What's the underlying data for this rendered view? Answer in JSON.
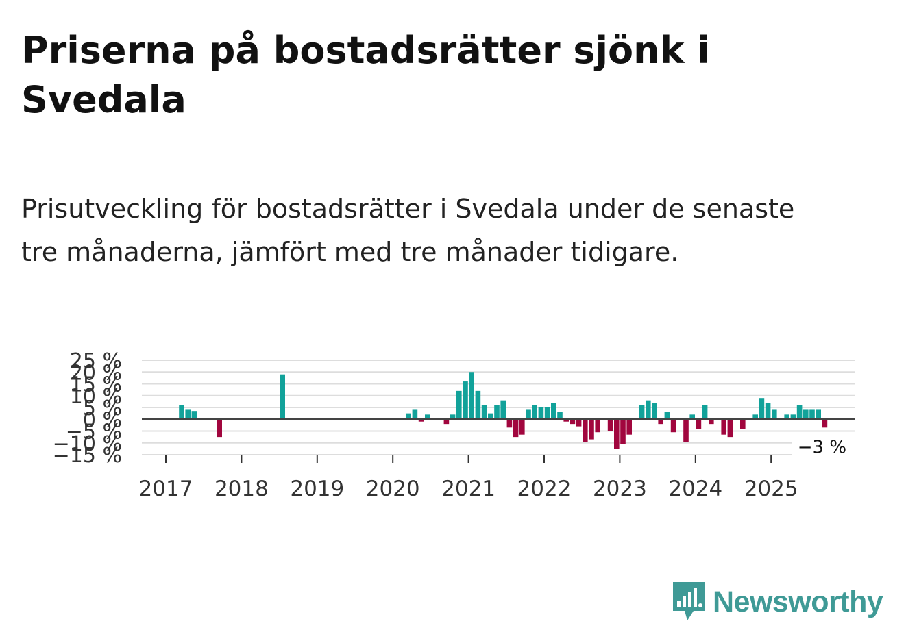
{
  "header": {
    "title": "Priserna på bostadsrätter sjönk i Svedala",
    "subtitle": "Prisutveckling för bostadsrätter i Svedala under de senaste tre månaderna, jämfört med tre månader tidigare."
  },
  "colors": {
    "positive": "#12a29a",
    "negative": "#a1063e",
    "zero_line": "#444444",
    "grid": "#dddddd",
    "brand": "#3f9a96"
  },
  "brand": {
    "name": "Newsworthy",
    "logo_icon": "bar-chart-bubble-icon"
  },
  "chart_data": {
    "type": "bar",
    "title": "Priserna på bostadsrätter sjönk i Svedala",
    "xlabel": "",
    "ylabel": "",
    "ylim": [
      -15,
      25
    ],
    "yticks": [
      25,
      20,
      15,
      10,
      5,
      0,
      -5,
      -10,
      -15
    ],
    "ytick_labels": [
      "25 %",
      "20 %",
      "15 %",
      "10 %",
      "5 %",
      "0 %",
      "−5 %",
      "−10 %",
      "−15 %"
    ],
    "xticks": [
      "2017",
      "2018",
      "2019",
      "2020",
      "2021",
      "2022",
      "2023",
      "2024",
      "2025"
    ],
    "start": "2017-01",
    "values": [
      0,
      0,
      6,
      4,
      3.5,
      -0.5,
      0,
      0,
      -7.5,
      0,
      0,
      0,
      0,
      0,
      0,
      0,
      0,
      0,
      19,
      0,
      0,
      0,
      0,
      0,
      0,
      0,
      0,
      0,
      0,
      0,
      0,
      0,
      0,
      0,
      0,
      0,
      0,
      0,
      2.5,
      4,
      -1,
      2,
      0,
      0.5,
      -2,
      2,
      12,
      16,
      20,
      12,
      6,
      2.5,
      6,
      8,
      -3.5,
      -7.5,
      -6.5,
      4,
      6,
      5,
      5,
      7,
      3,
      -1,
      -2,
      -3,
      -9.5,
      -8.5,
      -5.5,
      0.5,
      -5,
      -12.5,
      -10.5,
      -6.5,
      0.5,
      6,
      8,
      7,
      -2,
      3,
      -5.5,
      0.5,
      -9.5,
      2,
      -4,
      6,
      -2,
      0,
      -6.5,
      -7.5,
      0.5,
      -4,
      0,
      2,
      9,
      7,
      4,
      0,
      2,
      2,
      6,
      4,
      4,
      4,
      -3.5
    ],
    "last_label": "−3 %"
  }
}
